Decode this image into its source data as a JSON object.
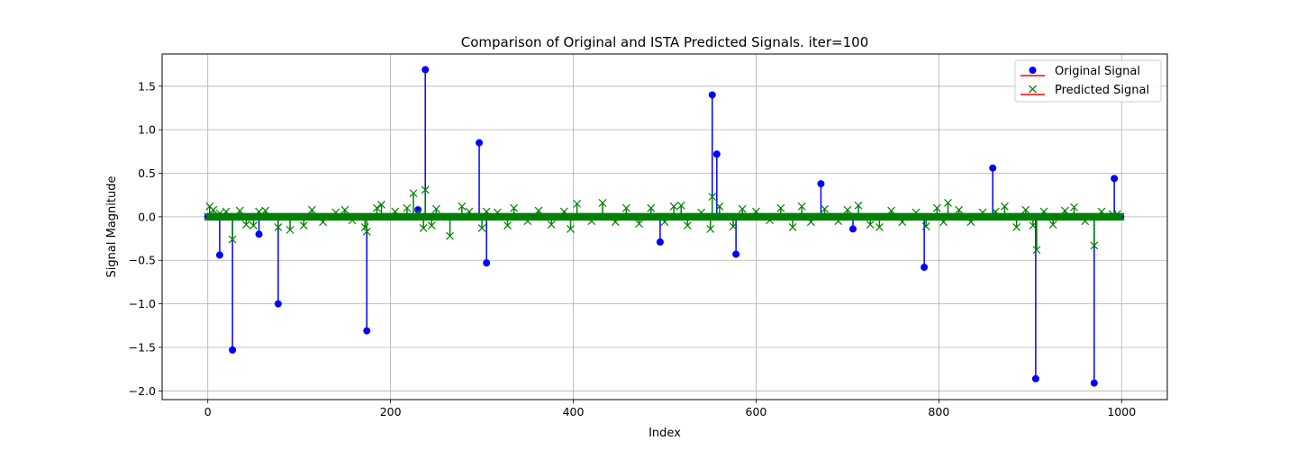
{
  "chart_data": {
    "type": "stem",
    "title": "Comparison of Original and ISTA Predicted Signals. iter=100",
    "xlabel": "Index",
    "ylabel": "Signal Magnitude",
    "xlim": [
      -50,
      1050
    ],
    "ylim": [
      -2.1,
      1.87
    ],
    "xticks": [
      0,
      200,
      400,
      600,
      800,
      1000
    ],
    "xtick_labels": [
      "0",
      "200",
      "400",
      "600",
      "800",
      "1000"
    ],
    "yticks": [
      -2.0,
      -1.5,
      -1.0,
      -0.5,
      0.0,
      0.5,
      1.0,
      1.5
    ],
    "ytick_labels": [
      "−2.0",
      "−1.5",
      "−1.0",
      "−0.5",
      "0.0",
      "0.5",
      "1.0",
      "1.5"
    ],
    "grid": true,
    "legend_position": "top-right",
    "legend": [
      "Original Signal",
      "Predicted Signal"
    ],
    "colors": {
      "original": "#0000ff",
      "predicted": "#008000",
      "baseline": "#ff0000"
    },
    "n_points": 1000,
    "series": [
      {
        "name": "Original Signal",
        "marker": "circle",
        "nonzero_points": [
          [
            13,
            -0.44
          ],
          [
            27,
            -1.53
          ],
          [
            56,
            -0.2
          ],
          [
            77,
            -1.0
          ],
          [
            174,
            -1.31
          ],
          [
            230,
            0.08
          ],
          [
            238,
            1.69
          ],
          [
            297,
            0.85
          ],
          [
            305,
            -0.53
          ],
          [
            495,
            -0.29
          ],
          [
            552,
            1.4
          ],
          [
            557,
            0.72
          ],
          [
            578,
            -0.43
          ],
          [
            671,
            0.38
          ],
          [
            706,
            -0.14
          ],
          [
            784,
            -0.58
          ],
          [
            859,
            0.56
          ],
          [
            906,
            -1.86
          ],
          [
            970,
            -1.91
          ],
          [
            992,
            0.44
          ]
        ]
      },
      {
        "name": "Predicted Signal",
        "marker": "x",
        "nonzero_points": [
          [
            2,
            0.12
          ],
          [
            6,
            0.08
          ],
          [
            13,
            0.04
          ],
          [
            20,
            0.06
          ],
          [
            27,
            -0.26
          ],
          [
            35,
            0.07
          ],
          [
            42,
            -0.09
          ],
          [
            50,
            -0.1
          ],
          [
            56,
            0.06
          ],
          [
            63,
            0.07
          ],
          [
            77,
            -0.12
          ],
          [
            90,
            -0.15
          ],
          [
            105,
            -0.1
          ],
          [
            114,
            0.08
          ],
          [
            126,
            -0.06
          ],
          [
            140,
            0.05
          ],
          [
            150,
            0.08
          ],
          [
            158,
            -0.04
          ],
          [
            172,
            -0.12
          ],
          [
            174,
            -0.17
          ],
          [
            185,
            0.1
          ],
          [
            190,
            0.14
          ],
          [
            205,
            0.06
          ],
          [
            218,
            0.1
          ],
          [
            225,
            0.27
          ],
          [
            230,
            0.05
          ],
          [
            236,
            -0.13
          ],
          [
            238,
            0.31
          ],
          [
            245,
            -0.1
          ],
          [
            250,
            0.09
          ],
          [
            265,
            -0.22
          ],
          [
            278,
            0.12
          ],
          [
            286,
            0.06
          ],
          [
            300,
            -0.13
          ],
          [
            305,
            0.06
          ],
          [
            317,
            0.05
          ],
          [
            328,
            -0.1
          ],
          [
            335,
            0.1
          ],
          [
            350,
            -0.05
          ],
          [
            362,
            0.07
          ],
          [
            376,
            -0.09
          ],
          [
            390,
            0.06
          ],
          [
            397,
            -0.14
          ],
          [
            404,
            0.15
          ],
          [
            420,
            -0.05
          ],
          [
            432,
            0.16
          ],
          [
            446,
            -0.06
          ],
          [
            458,
            0.1
          ],
          [
            472,
            -0.08
          ],
          [
            485,
            0.1
          ],
          [
            500,
            -0.06
          ],
          [
            510,
            0.12
          ],
          [
            518,
            0.13
          ],
          [
            525,
            -0.1
          ],
          [
            540,
            0.05
          ],
          [
            550,
            -0.14
          ],
          [
            552,
            0.23
          ],
          [
            560,
            0.12
          ],
          [
            575,
            -0.11
          ],
          [
            585,
            0.09
          ],
          [
            600,
            0.06
          ],
          [
            615,
            -0.04
          ],
          [
            627,
            0.1
          ],
          [
            640,
            -0.12
          ],
          [
            650,
            0.12
          ],
          [
            660,
            -0.06
          ],
          [
            675,
            0.09
          ],
          [
            690,
            -0.05
          ],
          [
            700,
            0.08
          ],
          [
            712,
            0.13
          ],
          [
            725,
            -0.09
          ],
          [
            735,
            -0.12
          ],
          [
            748,
            0.07
          ],
          [
            760,
            -0.06
          ],
          [
            775,
            0.05
          ],
          [
            786,
            -0.11
          ],
          [
            798,
            0.1
          ],
          [
            805,
            -0.06
          ],
          [
            810,
            0.16
          ],
          [
            822,
            0.08
          ],
          [
            835,
            -0.06
          ],
          [
            848,
            0.05
          ],
          [
            862,
            0.06
          ],
          [
            872,
            0.12
          ],
          [
            885,
            -0.12
          ],
          [
            895,
            0.08
          ],
          [
            903,
            -0.1
          ],
          [
            907,
            -0.38
          ],
          [
            915,
            0.06
          ],
          [
            925,
            -0.09
          ],
          [
            938,
            0.07
          ],
          [
            948,
            0.11
          ],
          [
            960,
            -0.05
          ],
          [
            970,
            -0.33
          ],
          [
            978,
            0.06
          ],
          [
            990,
            0.03
          ],
          [
            995,
            0.03
          ]
        ]
      }
    ]
  }
}
